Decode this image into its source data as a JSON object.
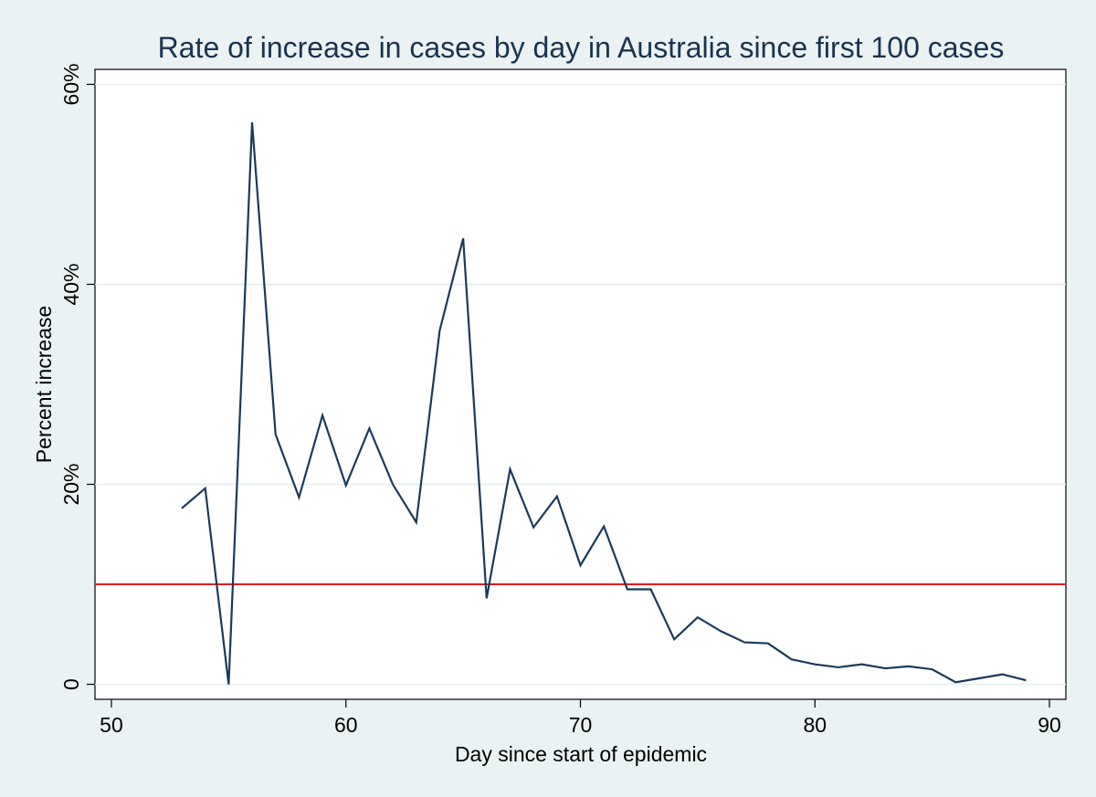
{
  "chart_data": {
    "type": "line",
    "title": "Rate of increase in cases by day in Australia since first 100 cases",
    "xlabel": "Day since start of epidemic",
    "ylabel": "Percent increase",
    "xlim": [
      49.3,
      90.7
    ],
    "ylim": [
      -1.5,
      61.5
    ],
    "xticks": [
      50,
      60,
      70,
      80,
      90
    ],
    "xtick_labels": [
      "50",
      "60",
      "70",
      "80",
      "90"
    ],
    "yticks": [
      0,
      20,
      40,
      60
    ],
    "ytick_labels": [
      "0",
      "20%",
      "40%",
      "60%"
    ],
    "grid": true,
    "series": [
      {
        "name": "Percent increase",
        "x": [
          53,
          54,
          55,
          56,
          57,
          58,
          59,
          60,
          61,
          62,
          63,
          64,
          65,
          66,
          67,
          68,
          69,
          70,
          71,
          72,
          73,
          74,
          75,
          76,
          77,
          78,
          79,
          80,
          81,
          82,
          83,
          84,
          85,
          86,
          87,
          88,
          89
        ],
        "values": [
          17.6,
          19.6,
          0.0,
          56.2,
          25.0,
          18.7,
          26.9,
          19.9,
          25.6,
          20.0,
          16.2,
          35.4,
          44.6,
          8.6,
          21.5,
          15.7,
          18.8,
          11.9,
          15.8,
          9.5,
          9.5,
          4.5,
          6.7,
          5.3,
          4.2,
          4.1,
          2.5,
          2.0,
          1.7,
          2.0,
          1.6,
          1.8,
          1.5,
          0.2,
          0.6,
          1.0,
          0.4
        ]
      }
    ],
    "reference_line": {
      "y": 10,
      "color": "#e8191c"
    },
    "colors": {
      "background": "#eaf2f3",
      "plot_background": "#ffffff",
      "line": "#1a3a5a",
      "grid": "#e3eef0",
      "title": "#1a3350"
    }
  }
}
